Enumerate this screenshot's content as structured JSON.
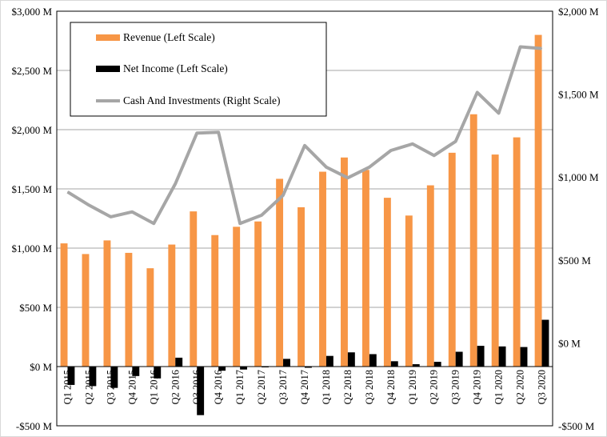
{
  "chart_data": {
    "type": "bar",
    "title": "",
    "categories": [
      "Q1 2015",
      "Q2 2015",
      "Q3 2015",
      "Q4 2015",
      "Q1 2016",
      "Q2 2016",
      "Q3 2016",
      "Q4 2016",
      "Q1 2017",
      "Q2 2017",
      "Q3 2017",
      "Q4 2017",
      "Q1 2018",
      "Q2 2018",
      "Q3 2018",
      "Q4 2018",
      "Q1 2019",
      "Q2 2019",
      "Q3 2019",
      "Q4 2019",
      "Q1 2020",
      "Q2 2020",
      "Q3 2020"
    ],
    "series": [
      {
        "name": "Revenue (Left Scale)",
        "type": "bar",
        "axis": "left",
        "color": "#F79646",
        "values": [
          1040,
          950,
          1065,
          960,
          830,
          1030,
          1310,
          1110,
          1180,
          1225,
          1585,
          1345,
          1645,
          1765,
          1660,
          1425,
          1275,
          1530,
          1805,
          2130,
          1790,
          1935,
          2800
        ]
      },
      {
        "name": "Net Income (Left Scale)",
        "type": "bar",
        "axis": "left",
        "color": "#000000",
        "values": [
          -155,
          -165,
          -180,
          -80,
          -100,
          75,
          -410,
          -35,
          -25,
          -5,
          65,
          -10,
          90,
          120,
          105,
          45,
          20,
          40,
          125,
          175,
          170,
          165,
          395
        ]
      },
      {
        "name": "Cash And Investments (Right Scale)",
        "type": "line",
        "axis": "right",
        "color": "#A6A6A6",
        "values": [
          910,
          830,
          760,
          790,
          720,
          960,
          1265,
          1270,
          720,
          770,
          890,
          1190,
          1060,
          995,
          1060,
          1160,
          1200,
          1130,
          1215,
          1510,
          1385,
          1785,
          1775
        ]
      }
    ],
    "left_axis": {
      "ylim": [
        -500,
        3000
      ],
      "ticks": [
        -500,
        0,
        500,
        1000,
        1500,
        2000,
        2500,
        3000
      ],
      "tick_labels": [
        "-$500 M",
        "$0 M",
        "$500 M",
        "$1,000 M",
        "$1,500 M",
        "$2,000 M",
        "$2,500 M",
        "$3,000 M"
      ]
    },
    "right_axis": {
      "ylim": [
        -500,
        2000
      ],
      "ticks": [
        -500,
        0,
        500,
        1000,
        1500,
        2000
      ],
      "tick_labels": [
        "-$500 M",
        "$0 M",
        "$500 M",
        "$1,000 M",
        "$1,500 M",
        "$2,000 M"
      ]
    },
    "grid": true,
    "legend_position": "top-left"
  }
}
